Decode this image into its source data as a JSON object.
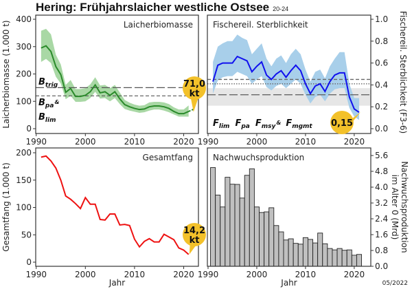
{
  "title": "Hering: Frühjahrslaicher westliche Ostsee",
  "subtitle": "20-24",
  "date": "05/2022",
  "colors": {
    "ssb": "#2a8a2a",
    "ssb_band": "#a9d8a5",
    "f": "#1010ee",
    "f_band": "#a8cfea",
    "catch": "#ee1111",
    "recruit": "#c0c0c0",
    "callout": "#f3c12a",
    "fband": "#e6e6e6"
  },
  "chart_data": [
    {
      "type": "line",
      "title": "Laicherbiomasse",
      "ylabel": "Laicherbiomasse (1.000 t)",
      "xlabel": "",
      "xlim": [
        1989.9,
        2023
      ],
      "ylim": [
        0,
        400
      ],
      "yticks": [
        0,
        100,
        200,
        300,
        400
      ],
      "xticks": [
        1990,
        2000,
        2010,
        2020
      ],
      "ytick_labels": [
        "0",
        "100",
        "200",
        "300",
        "400"
      ],
      "x": [
        1991,
        1992,
        1993,
        1994,
        1995,
        1996,
        1997,
        1998,
        1999,
        2000,
        2001,
        2002,
        2003,
        2004,
        2005,
        2006,
        2007,
        2008,
        2009,
        2010,
        2011,
        2012,
        2013,
        2014,
        2015,
        2016,
        2017,
        2018,
        2019,
        2020,
        2021
      ],
      "values": [
        295,
        303,
        282,
        227,
        198,
        133,
        147,
        118,
        118,
        122,
        135,
        160,
        131,
        135,
        122,
        135,
        109,
        88,
        80,
        74,
        70,
        72,
        80,
        83,
        83,
        80,
        74,
        63,
        55,
        55,
        63
      ],
      "lower": [
        244,
        255,
        240,
        190,
        165,
        108,
        120,
        98,
        98,
        100,
        112,
        135,
        110,
        112,
        100,
        112,
        90,
        72,
        66,
        62,
        58,
        60,
        66,
        70,
        70,
        66,
        60,
        52,
        44,
        44,
        44
      ],
      "upper": [
        358,
        365,
        345,
        270,
        235,
        160,
        178,
        145,
        145,
        148,
        162,
        188,
        158,
        160,
        148,
        160,
        132,
        105,
        95,
        88,
        84,
        86,
        96,
        98,
        98,
        96,
        90,
        78,
        70,
        70,
        85
      ],
      "projection": {
        "x": [
          2021,
          2022
        ],
        "values": [
          63,
          71
        ]
      },
      "reference_lines": [
        {
          "label": "B",
          "sub": "trig",
          "value": 150,
          "style": "longdash"
        },
        {
          "label": "B",
          "sub": "pa",
          "suffix": "&",
          "value": 120,
          "style": "dash"
        },
        {
          "label": "B",
          "sub": "lim",
          "value": 120
        }
      ],
      "callout": "71,0 kt",
      "callout_lines": [
        "71,0",
        "kt"
      ]
    },
    {
      "type": "line",
      "title": "Fischereil. Sterblichkeit",
      "ylabel": "Fischereil. Sterblichkeit (F3-6)",
      "xlim": [
        1989.86,
        2023.4
      ],
      "ylim": [
        0,
        1
      ],
      "yticks": [
        0,
        0.2,
        0.4,
        0.6,
        0.8,
        1.0
      ],
      "ytick_labels": [
        "0.0",
        "0.2",
        "0.4",
        "0.6",
        "0.8",
        "1.0"
      ],
      "xticks": [
        1990,
        2000,
        2010,
        2020
      ],
      "x": [
        1991,
        1992,
        1993,
        1994,
        1995,
        1996,
        1997,
        1998,
        1999,
        2000,
        2001,
        2002,
        2003,
        2004,
        2005,
        2006,
        2007,
        2008,
        2009,
        2010,
        2011,
        2012,
        2013,
        2014,
        2015,
        2016,
        2017,
        2018,
        2019,
        2020,
        2021
      ],
      "values": [
        0.43,
        0.58,
        0.6,
        0.6,
        0.6,
        0.66,
        0.64,
        0.62,
        0.52,
        0.57,
        0.61,
        0.49,
        0.45,
        0.5,
        0.53,
        0.47,
        0.53,
        0.58,
        0.53,
        0.41,
        0.32,
        0.39,
        0.41,
        0.34,
        0.43,
        0.49,
        0.51,
        0.51,
        0.29,
        0.18,
        0.15
      ],
      "lower": [
        0.32,
        0.44,
        0.47,
        0.48,
        0.48,
        0.52,
        0.5,
        0.48,
        0.41,
        0.45,
        0.48,
        0.38,
        0.35,
        0.39,
        0.41,
        0.37,
        0.41,
        0.45,
        0.41,
        0.31,
        0.23,
        0.29,
        0.31,
        0.25,
        0.32,
        0.36,
        0.37,
        0.37,
        0.19,
        0.11,
        0.08
      ],
      "upper": [
        0.61,
        0.75,
        0.78,
        0.8,
        0.8,
        0.86,
        0.83,
        0.81,
        0.68,
        0.73,
        0.78,
        0.64,
        0.57,
        0.64,
        0.67,
        0.6,
        0.68,
        0.73,
        0.68,
        0.54,
        0.43,
        0.52,
        0.54,
        0.46,
        0.57,
        0.64,
        0.7,
        0.7,
        0.41,
        0.28,
        0.28
      ],
      "reference_lines": [
        {
          "label": "F",
          "sub": "lim",
          "value": 0.45,
          "style": "dash"
        },
        {
          "label": "F",
          "sub": "pa",
          "value": 0.41,
          "style": "dot"
        },
        {
          "label": "F",
          "sub": "msy",
          "suffix": "&",
          "value": 0.31,
          "style": "longdash"
        },
        {
          "label": "F",
          "sub": "mgmt",
          "value": 0.31
        }
      ],
      "shaded_range": [
        0.21,
        0.37
      ],
      "callout": "0,15"
    },
    {
      "type": "line",
      "title": "Gesamtfang",
      "ylabel": "Gesamtfang (1.000 t)",
      "xlabel": "Jahr",
      "xlim": [
        1989.9,
        2023
      ],
      "ylim": [
        -2,
        205
      ],
      "yticks": [
        0,
        50,
        100,
        150,
        200
      ],
      "ytick_labels": [
        "0",
        "50",
        "100",
        "150",
        "200"
      ],
      "xticks": [
        1990,
        2000,
        2010,
        2020
      ],
      "x": [
        1991,
        1992,
        1993,
        1994,
        1995,
        1996,
        1997,
        1998,
        1999,
        2000,
        2001,
        2002,
        2003,
        2004,
        2005,
        2006,
        2007,
        2008,
        2009,
        2010,
        2011,
        2012,
        2013,
        2014,
        2015,
        2016,
        2017,
        2018,
        2019,
        2020,
        2021
      ],
      "values": [
        192,
        194,
        185,
        172,
        150,
        121,
        115,
        107,
        98,
        118,
        106,
        106,
        78,
        77,
        88,
        88,
        68,
        69,
        67,
        42,
        28,
        38,
        43,
        37,
        37,
        51,
        46,
        41,
        26,
        22,
        14.2
      ],
      "callout": "14,2 kt",
      "callout_lines": [
        "14,2",
        "kt"
      ]
    },
    {
      "type": "bar",
      "title": "Nachwuchsproduktion",
      "ylabel": "Nachwuchsproduktion im Alter 0 (Mrd)",
      "ylabel_lines": [
        "Nachwuchsproduktion",
        "im Alter 0 (Mrd)"
      ],
      "xlabel": "Jahr",
      "xlim": [
        1989.86,
        2023.4
      ],
      "ylim": [
        0,
        5.9
      ],
      "yticks": [
        0,
        0.8,
        1.6,
        2.4,
        3.2,
        4.0,
        4.8,
        5.6
      ],
      "ytick_labels": [
        "0.0",
        "0.8",
        "1.6",
        "2.4",
        "3.2",
        "4.0",
        "4.8",
        "5.6"
      ],
      "xticks": [
        1990,
        2000,
        2010,
        2020
      ],
      "x": [
        1991,
        1992,
        1993,
        1994,
        1995,
        1996,
        1997,
        1998,
        1999,
        2000,
        2001,
        2002,
        2003,
        2004,
        2005,
        2006,
        2007,
        2008,
        2009,
        2010,
        2011,
        2012,
        2013,
        2014,
        2015,
        2016,
        2017,
        2018,
        2019,
        2020,
        2021
      ],
      "values": [
        4.99,
        3.6,
        3.0,
        4.5,
        4.15,
        4.14,
        3.45,
        4.6,
        4.93,
        3.0,
        2.72,
        2.75,
        2.96,
        2.06,
        1.74,
        1.33,
        1.39,
        1.16,
        1.12,
        1.45,
        1.36,
        1.18,
        1.68,
        1.14,
        0.9,
        0.83,
        0.9,
        0.81,
        0.83,
        0.56,
        0.6
      ]
    }
  ]
}
